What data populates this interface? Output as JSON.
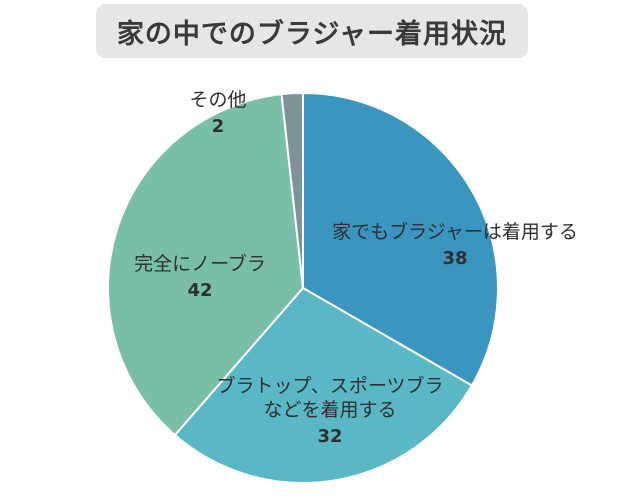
{
  "title": "家の中でのブラジャー着用状況",
  "chart_data": {
    "type": "pie",
    "title": "家の中でのブラジャー着用状況",
    "slices": [
      {
        "label_lines": [
          "家でもブラジャーは着用する"
        ],
        "value": 38,
        "color": "#3a96c0"
      },
      {
        "label_lines": [
          "ブラトップ、スポーツブラ",
          "などを着用する"
        ],
        "value": 32,
        "color": "#5ab7c5"
      },
      {
        "label_lines": [
          "完全にノーブラ"
        ],
        "value": 42,
        "color": "#79bfa8"
      },
      {
        "label_lines": [
          "その他"
        ],
        "value": 2,
        "color": "#7f9396"
      }
    ]
  }
}
